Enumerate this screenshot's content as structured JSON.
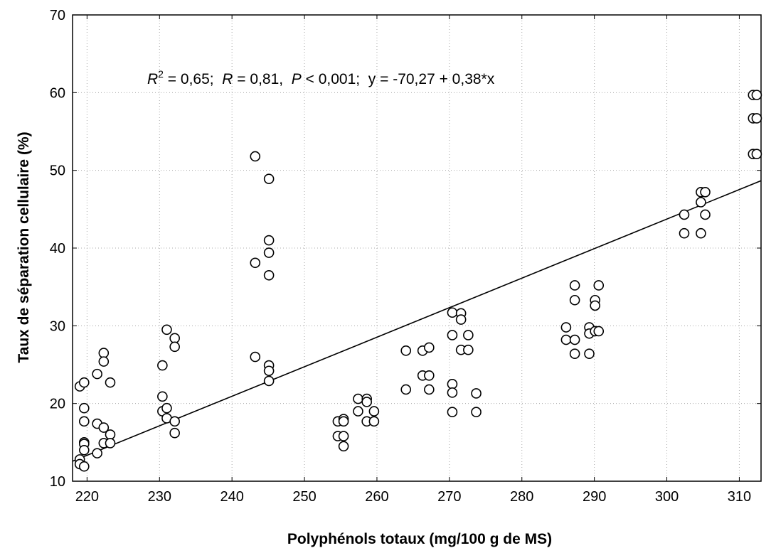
{
  "chart_data": {
    "type": "scatter",
    "title": "",
    "xlabel": "Polyphénols totaux (mg/100 g de MS)",
    "ylabel": "Taux de séparation cellulaire (%)",
    "xlim": [
      218,
      313
    ],
    "ylim": [
      10,
      70
    ],
    "xticks": [
      220,
      230,
      240,
      250,
      260,
      270,
      280,
      290,
      300,
      310
    ],
    "yticks": [
      10,
      20,
      30,
      40,
      50,
      60,
      70
    ],
    "grid": true,
    "annotation": {
      "r2_label": "R",
      "r2_sup": "2",
      "r2_text": " = 0,65;  ",
      "r_label": "R",
      "r_text": " = 0,81,  ",
      "p_label": "P",
      "p_text": " < 0,001;  y = -70,27 + 0,38*x"
    },
    "regression": {
      "intercept": -70.27,
      "slope": 0.38
    },
    "points": [
      {
        "x": 219.0,
        "y": 22.2
      },
      {
        "x": 219.0,
        "y": 12.8
      },
      {
        "x": 219.0,
        "y": 12.2
      },
      {
        "x": 219.6,
        "y": 22.7
      },
      {
        "x": 219.6,
        "y": 19.4
      },
      {
        "x": 219.6,
        "y": 17.7
      },
      {
        "x": 219.6,
        "y": 15.0
      },
      {
        "x": 219.6,
        "y": 14.8
      },
      {
        "x": 219.6,
        "y": 14.0
      },
      {
        "x": 219.6,
        "y": 11.9
      },
      {
        "x": 221.4,
        "y": 23.8
      },
      {
        "x": 221.4,
        "y": 17.4
      },
      {
        "x": 221.4,
        "y": 13.6
      },
      {
        "x": 222.3,
        "y": 26.5
      },
      {
        "x": 222.3,
        "y": 25.4
      },
      {
        "x": 222.3,
        "y": 16.9
      },
      {
        "x": 222.3,
        "y": 14.9
      },
      {
        "x": 223.2,
        "y": 22.7
      },
      {
        "x": 223.2,
        "y": 16.0
      },
      {
        "x": 223.2,
        "y": 14.9
      },
      {
        "x": 230.4,
        "y": 24.9
      },
      {
        "x": 230.4,
        "y": 20.9
      },
      {
        "x": 230.4,
        "y": 19.0
      },
      {
        "x": 231.0,
        "y": 29.5
      },
      {
        "x": 231.0,
        "y": 19.4
      },
      {
        "x": 231.0,
        "y": 18.1
      },
      {
        "x": 232.1,
        "y": 28.4
      },
      {
        "x": 232.1,
        "y": 27.3
      },
      {
        "x": 232.1,
        "y": 17.7
      },
      {
        "x": 232.1,
        "y": 16.2
      },
      {
        "x": 243.2,
        "y": 51.8
      },
      {
        "x": 243.2,
        "y": 38.1
      },
      {
        "x": 243.2,
        "y": 26.0
      },
      {
        "x": 245.1,
        "y": 48.9
      },
      {
        "x": 245.1,
        "y": 41.0
      },
      {
        "x": 245.1,
        "y": 39.4
      },
      {
        "x": 245.1,
        "y": 36.5
      },
      {
        "x": 245.1,
        "y": 24.9
      },
      {
        "x": 245.1,
        "y": 24.2
      },
      {
        "x": 245.1,
        "y": 22.9
      },
      {
        "x": 254.6,
        "y": 17.7
      },
      {
        "x": 254.6,
        "y": 15.8
      },
      {
        "x": 255.4,
        "y": 18.0
      },
      {
        "x": 255.4,
        "y": 17.7
      },
      {
        "x": 255.4,
        "y": 15.8
      },
      {
        "x": 255.4,
        "y": 14.5
      },
      {
        "x": 257.4,
        "y": 20.6
      },
      {
        "x": 257.4,
        "y": 19.0
      },
      {
        "x": 258.6,
        "y": 20.6
      },
      {
        "x": 258.6,
        "y": 20.2
      },
      {
        "x": 258.6,
        "y": 17.7
      },
      {
        "x": 259.6,
        "y": 19.0
      },
      {
        "x": 259.6,
        "y": 17.7
      },
      {
        "x": 264.0,
        "y": 26.8
      },
      {
        "x": 264.0,
        "y": 21.8
      },
      {
        "x": 266.3,
        "y": 26.8
      },
      {
        "x": 266.3,
        "y": 23.6
      },
      {
        "x": 267.2,
        "y": 27.2
      },
      {
        "x": 267.2,
        "y": 23.6
      },
      {
        "x": 267.2,
        "y": 21.8
      },
      {
        "x": 270.4,
        "y": 31.7
      },
      {
        "x": 270.4,
        "y": 28.8
      },
      {
        "x": 270.4,
        "y": 22.5
      },
      {
        "x": 270.4,
        "y": 21.4
      },
      {
        "x": 270.4,
        "y": 18.9
      },
      {
        "x": 271.6,
        "y": 31.6
      },
      {
        "x": 271.6,
        "y": 30.8
      },
      {
        "x": 271.6,
        "y": 26.9
      },
      {
        "x": 272.6,
        "y": 28.8
      },
      {
        "x": 272.6,
        "y": 26.9
      },
      {
        "x": 273.7,
        "y": 21.3
      },
      {
        "x": 273.7,
        "y": 18.9
      },
      {
        "x": 286.1,
        "y": 29.8
      },
      {
        "x": 286.1,
        "y": 28.2
      },
      {
        "x": 287.3,
        "y": 35.2
      },
      {
        "x": 287.3,
        "y": 33.3
      },
      {
        "x": 287.3,
        "y": 28.2
      },
      {
        "x": 287.3,
        "y": 26.4
      },
      {
        "x": 289.3,
        "y": 29.8
      },
      {
        "x": 289.3,
        "y": 29.0
      },
      {
        "x": 289.3,
        "y": 26.4
      },
      {
        "x": 290.1,
        "y": 33.3
      },
      {
        "x": 290.1,
        "y": 32.6
      },
      {
        "x": 290.1,
        "y": 29.3
      },
      {
        "x": 290.6,
        "y": 35.2
      },
      {
        "x": 290.6,
        "y": 29.3
      },
      {
        "x": 302.4,
        "y": 44.3
      },
      {
        "x": 302.4,
        "y": 41.9
      },
      {
        "x": 304.7,
        "y": 47.2
      },
      {
        "x": 304.7,
        "y": 45.9
      },
      {
        "x": 304.7,
        "y": 41.9
      },
      {
        "x": 305.3,
        "y": 47.2
      },
      {
        "x": 305.3,
        "y": 44.3
      },
      {
        "x": 311.9,
        "y": 59.7
      },
      {
        "x": 311.9,
        "y": 56.7
      },
      {
        "x": 311.9,
        "y": 52.1
      },
      {
        "x": 312.4,
        "y": 59.7
      },
      {
        "x": 312.4,
        "y": 56.7
      },
      {
        "x": 312.4,
        "y": 52.1
      }
    ]
  }
}
